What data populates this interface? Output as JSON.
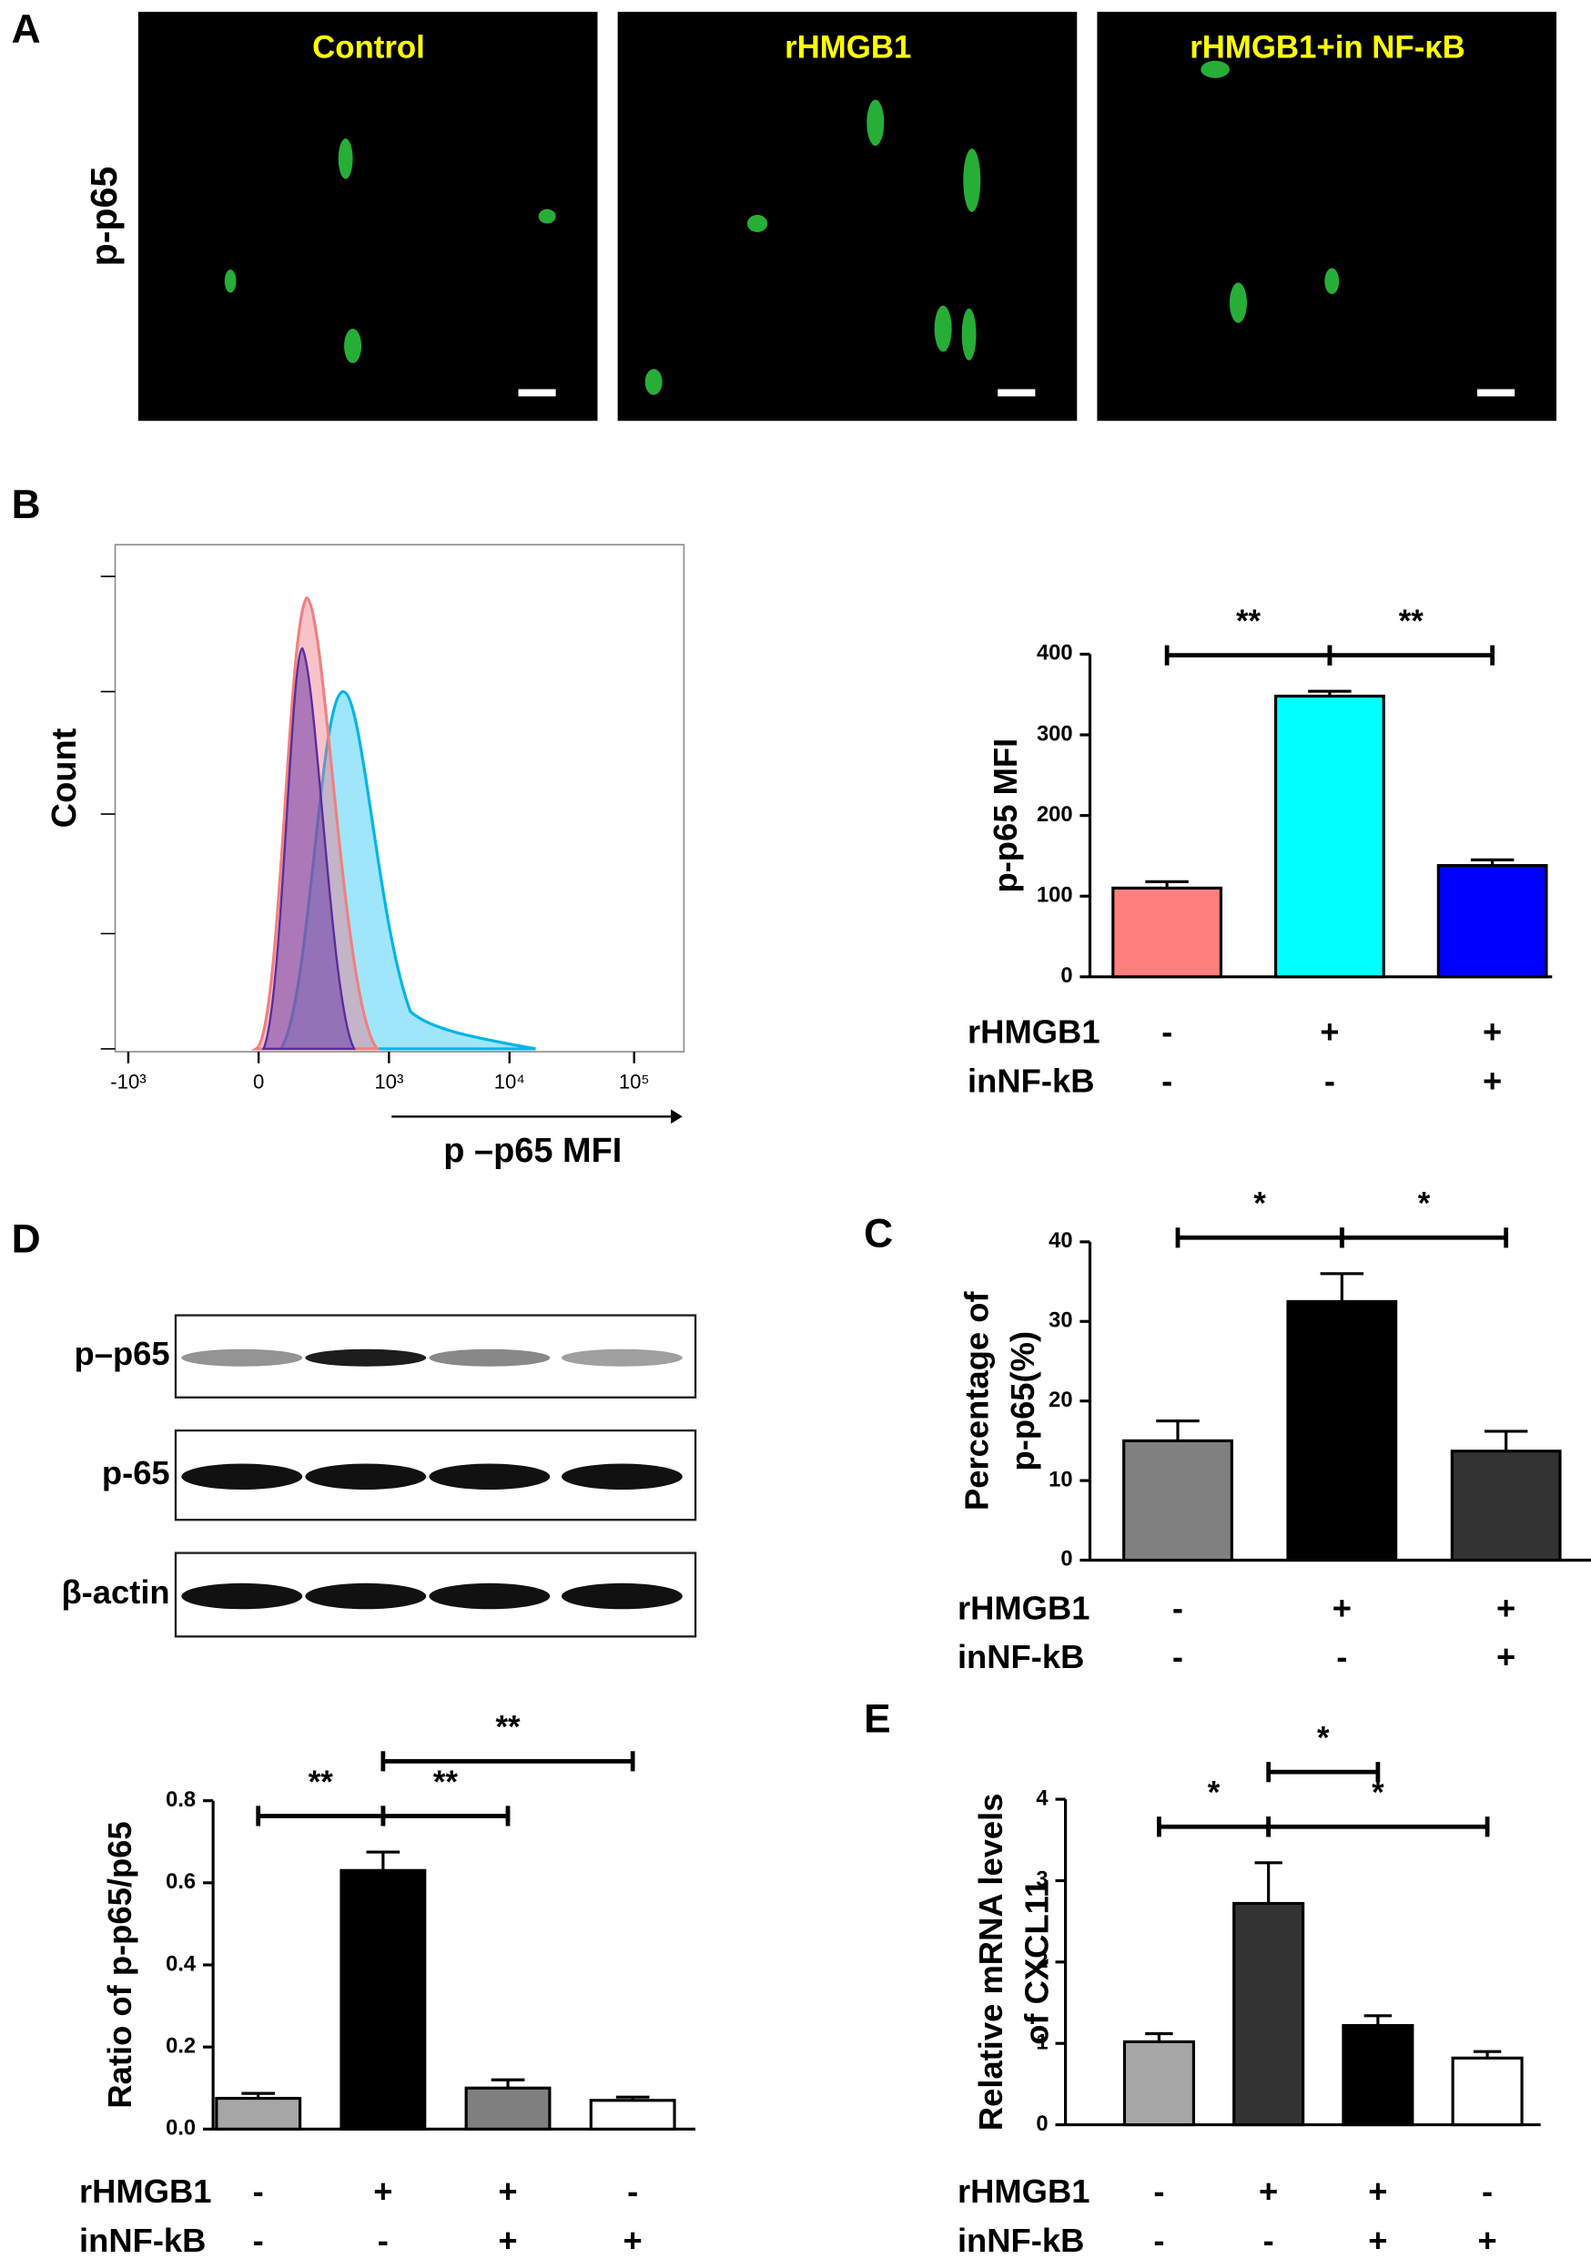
{
  "chart_data": [
    {
      "type": "micrograph",
      "label": "A",
      "row_label": "p-p65",
      "titles": [
        "Control",
        "rHMGB1",
        "rHMGB1+in NF-κB"
      ]
    },
    {
      "type": "flow-histogram",
      "label": "B",
      "ylabel": "Count",
      "xlabel": "p –p65  MFI",
      "xlim": [
        -1300,
        250000
      ],
      "xticks": [
        {
          "value": -1000,
          "label": "-10³"
        },
        0,
        {
          "value": 1000,
          "label": "10³"
        },
        {
          "value": 10000,
          "label": "10⁴"
        },
        {
          "value": 100000,
          "label": "10⁵"
        }
      ]
    },
    {
      "type": "bar",
      "ylabel": [
        "p-p65 MFI"
      ],
      "ylim": [
        0,
        400
      ],
      "yticks": [
        0,
        100,
        200,
        300,
        400
      ],
      "values": [
        110,
        348,
        138
      ],
      "errors": [
        8,
        6,
        7
      ],
      "colors": [
        "#ff7f7f",
        "#00ffff",
        "#0000ff"
      ],
      "conditions": [
        {
          "name": "rHMGB1",
          "values": [
            "-",
            "+",
            "+"
          ]
        },
        {
          "name": "inNF-kB",
          "values": [
            "-",
            "-",
            "+"
          ]
        }
      ],
      "significance": [
        {
          "from": 0,
          "to": 1,
          "label": "**"
        },
        {
          "from": 1,
          "to": 2,
          "label": "**"
        }
      ]
    },
    {
      "type": "blot",
      "label": "D",
      "rows": [
        "p–p65",
        "p-65",
        "β-actin"
      ]
    },
    {
      "type": "bar",
      "ylabel": [
        "Ratio of p-p65/p65"
      ],
      "ylim": [
        0,
        0.8
      ],
      "yticks": [
        {
          "value": 0,
          "label": "0.0"
        },
        0.2,
        0.4,
        0.6,
        0.8
      ],
      "values": [
        0.075,
        0.63,
        0.1,
        0.07
      ],
      "errors": [
        0.012,
        0.045,
        0.02,
        0.008
      ],
      "colors": [
        "#a6a6a6",
        "#000000",
        "#7f7f7f",
        "#ffffff"
      ],
      "conditions": [
        {
          "name": "rHMGB1",
          "values": [
            "-",
            "+",
            "+",
            "-"
          ]
        },
        {
          "name": "inNF-kB",
          "values": [
            "-",
            "-",
            "+",
            "+"
          ]
        }
      ],
      "significance": [
        {
          "from": 0,
          "to": 1,
          "label": "**"
        },
        {
          "from": 1,
          "to": 2,
          "label": "**"
        },
        {
          "from": 1,
          "to": 3,
          "label": "**"
        }
      ]
    },
    {
      "type": "bar",
      "label": "C",
      "ylabel": [
        "Percentage of",
        "p-p65(%)"
      ],
      "ylim": [
        0,
        40
      ],
      "yticks": [
        0,
        10,
        20,
        30,
        40
      ],
      "values": [
        15,
        32.5,
        13.7
      ],
      "errors": [
        2.5,
        3.5,
        2.5
      ],
      "colors": [
        "#808080",
        "#000000",
        "#333333"
      ],
      "conditions": [
        {
          "name": "rHMGB1",
          "values": [
            "-",
            "+",
            "+"
          ]
        },
        {
          "name": "inNF-kB",
          "values": [
            "-",
            "-",
            "+"
          ]
        }
      ],
      "significance": [
        {
          "from": 0,
          "to": 1,
          "label": "*"
        },
        {
          "from": 1,
          "to": 2,
          "label": "*"
        }
      ]
    },
    {
      "type": "bar",
      "label": "E",
      "ylabel": [
        "Relative mRNA levels",
        "of CXCL11"
      ],
      "ylim": [
        0,
        4
      ],
      "yticks": [
        0,
        1,
        2,
        3,
        4
      ],
      "values": [
        1.02,
        2.72,
        1.22,
        0.82
      ],
      "errors": [
        0.1,
        0.5,
        0.12,
        0.08
      ],
      "colors": [
        "#a6a6a6",
        "#333333",
        "#000000",
        "#ffffff"
      ],
      "conditions": [
        {
          "name": "rHMGB1",
          "values": [
            "-",
            "+",
            "+",
            "-"
          ]
        },
        {
          "name": "inNF-kB",
          "values": [
            "-",
            "-",
            "+",
            "+"
          ]
        }
      ],
      "significance": [
        {
          "from": 1,
          "to": 3,
          "label": "*"
        },
        {
          "from": 0,
          "to": 1,
          "label": "*"
        },
        {
          "from": 1,
          "to": 2,
          "label": "*"
        }
      ]
    }
  ]
}
